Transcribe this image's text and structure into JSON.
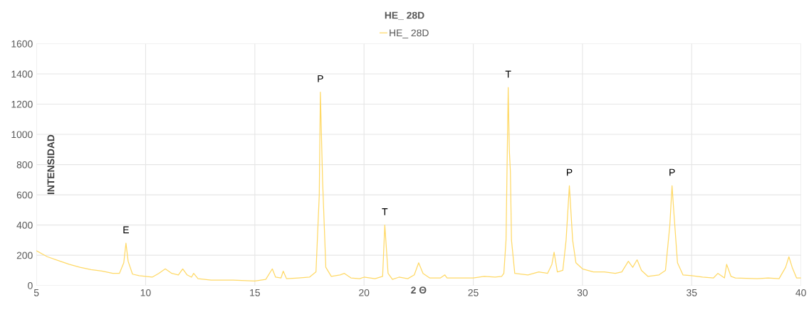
{
  "chart_data": {
    "type": "line",
    "title": "HE_ 28D",
    "xlabel": "2 Θ",
    "ylabel": "INTENSIDAD",
    "series": [
      {
        "name": "HE_ 28D",
        "color": "#ffd966",
        "x": [
          5,
          5.5,
          6,
          6.5,
          7,
          7.5,
          8,
          8.5,
          8.8,
          9.0,
          9.1,
          9.2,
          9.4,
          9.7,
          10,
          10.3,
          10.6,
          10.9,
          11.2,
          11.5,
          11.7,
          11.9,
          12.1,
          12.2,
          12.4,
          13,
          14,
          15,
          15.5,
          15.8,
          15.95,
          16.2,
          16.3,
          16.45,
          17,
          17.5,
          17.8,
          17.95,
          18.0,
          18.1,
          18.25,
          18.5,
          18.9,
          19.1,
          19.4,
          19.8,
          20,
          20.5,
          20.85,
          20.95,
          21.1,
          21.3,
          21.6,
          22,
          22.3,
          22.5,
          22.7,
          23,
          23.5,
          23.7,
          23.8,
          24.5,
          25,
          25.5,
          26.0,
          26.3,
          26.4,
          26.5,
          26.6,
          26.65,
          26.7,
          26.75,
          26.9,
          27.5,
          28,
          28.4,
          28.6,
          28.7,
          28.85,
          29.1,
          29.25,
          29.4,
          29.55,
          29.7,
          30,
          30.5,
          31,
          31.5,
          31.8,
          32.1,
          32.3,
          32.5,
          32.7,
          33,
          33.5,
          33.8,
          34.0,
          34.1,
          34.2,
          34.35,
          34.6,
          35,
          35.5,
          36,
          36.2,
          36.5,
          36.6,
          36.8,
          37,
          38,
          38.5,
          39,
          39.3,
          39.45,
          39.6,
          39.8,
          40
        ],
        "values": [
          230,
          190,
          165,
          140,
          120,
          105,
          95,
          80,
          80,
          150,
          280,
          160,
          75,
          65,
          60,
          55,
          80,
          110,
          80,
          70,
          110,
          70,
          55,
          80,
          45,
          35,
          35,
          30,
          40,
          110,
          55,
          50,
          95,
          45,
          50,
          55,
          90,
          600,
          1280,
          700,
          120,
          60,
          70,
          80,
          50,
          45,
          55,
          45,
          60,
          400,
          80,
          40,
          55,
          45,
          70,
          150,
          80,
          50,
          50,
          70,
          50,
          50,
          50,
          60,
          55,
          60,
          80,
          300,
          1310,
          900,
          750,
          300,
          80,
          70,
          90,
          80,
          140,
          220,
          90,
          100,
          300,
          660,
          300,
          150,
          110,
          90,
          90,
          80,
          90,
          160,
          120,
          170,
          100,
          60,
          70,
          100,
          400,
          660,
          450,
          150,
          70,
          65,
          55,
          50,
          80,
          50,
          140,
          60,
          50,
          45,
          50,
          45,
          120,
          190,
          120,
          50,
          50
        ]
      }
    ],
    "annotations": [
      {
        "text": "E",
        "x": 9.1,
        "y": 280
      },
      {
        "text": "P",
        "x": 18.0,
        "y": 1280
      },
      {
        "text": "T",
        "x": 20.95,
        "y": 400
      },
      {
        "text": "T",
        "x": 26.6,
        "y": 1310
      },
      {
        "text": "P",
        "x": 29.4,
        "y": 660
      },
      {
        "text": "P",
        "x": 34.1,
        "y": 660
      }
    ],
    "xlim": [
      5,
      40
    ],
    "xticks": [
      5,
      10,
      15,
      20,
      25,
      30,
      35,
      40
    ],
    "ylim": [
      0,
      1600
    ],
    "yticks": [
      0,
      200,
      400,
      600,
      800,
      1000,
      1200,
      1400,
      1600
    ],
    "grid": true,
    "legend": "top"
  }
}
